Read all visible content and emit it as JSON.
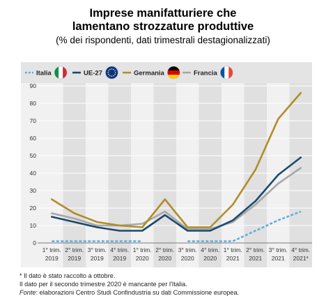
{
  "header": {
    "title_line1": "Imprese manifatturiere che",
    "title_line2": "lamentano strozzature produttive",
    "subtitle": "(% dei rispondenti, dati trimestrali destagionalizzati)"
  },
  "chart_data": {
    "type": "line",
    "categories": [
      [
        "1° trim.",
        "2019"
      ],
      [
        "2° trim.",
        "2019"
      ],
      [
        "3° trim.",
        "2019"
      ],
      [
        "4° trim.",
        "2019"
      ],
      [
        "1° trim.",
        "2020"
      ],
      [
        "2° trim.",
        "2020"
      ],
      [
        "3° trim.",
        "2020"
      ],
      [
        "4° trim.",
        "2020"
      ],
      [
        "1° trim.",
        "2021"
      ],
      [
        "2° trim.",
        "2021"
      ],
      [
        "3° trim.",
        "2021"
      ],
      [
        "4° trim.",
        "2021*"
      ]
    ],
    "ylim": [
      0,
      90
    ],
    "yticks": [
      0,
      10,
      20,
      30,
      40,
      50,
      60,
      70,
      80,
      90
    ],
    "grid": true,
    "legend_position": "top",
    "shaded_bands": [
      1,
      3,
      5,
      7,
      9,
      11
    ],
    "series": [
      {
        "name": "Italia",
        "color": "#5eaede",
        "dashed": true,
        "flag": "it-flag-icon",
        "values": [
          1,
          1,
          1,
          1,
          1,
          null,
          1,
          1,
          1,
          7,
          13,
          18
        ]
      },
      {
        "name": "UE-27",
        "color": "#1a4a6e",
        "dashed": false,
        "flag": "eu-flag-icon",
        "values": [
          15,
          12,
          9,
          7,
          7,
          16,
          7,
          7,
          13,
          24,
          39,
          49
        ]
      },
      {
        "name": "Germania",
        "color": "#b08d28",
        "dashed": false,
        "flag": "de-flag-icon",
        "values": [
          25,
          17,
          12,
          10,
          9,
          25,
          9,
          9,
          22,
          42,
          71,
          86
        ]
      },
      {
        "name": "Francia",
        "color": "#a7a7a7",
        "dashed": false,
        "flag": "fr-flag-icon",
        "values": [
          17,
          14,
          10,
          10,
          11,
          18,
          8,
          8,
          12,
          22,
          34,
          43
        ]
      }
    ]
  },
  "notes": {
    "note1": "* Il dato è stato raccolto a ottobre.",
    "note2": "Il dato per il secondo trimestre 2020 è mancante per l'Italia.",
    "source_label": "Fonte",
    "source_text": ": elaborazioni Centro Studi Confindustria su dati Commissione europea."
  }
}
